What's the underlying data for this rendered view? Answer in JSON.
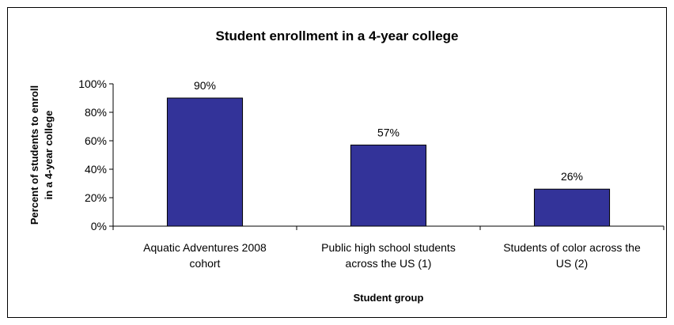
{
  "chart_data": {
    "type": "bar",
    "title": "Student enrollment in a 4-year college",
    "xlabel": "Student group",
    "ylabel_lines": [
      "Percent of students to enroll",
      "in a 4-year college"
    ],
    "categories": [
      [
        "Aquatic Adventures 2008",
        "cohort"
      ],
      [
        "Public high school students",
        "across the US (1)"
      ],
      [
        "Students of color across the",
        "US (2)"
      ]
    ],
    "values": [
      90,
      57,
      26
    ],
    "data_labels": [
      "90%",
      "57%",
      "26%"
    ],
    "yticks": [
      0,
      20,
      40,
      60,
      80,
      100
    ],
    "ytick_labels": [
      "0%",
      "20%",
      "40%",
      "60%",
      "80%",
      "100%"
    ],
    "ylim": [
      0,
      100
    ],
    "grid": false,
    "legend": "none",
    "bar_color": "#333399",
    "bar_edge_color": "#000000"
  }
}
